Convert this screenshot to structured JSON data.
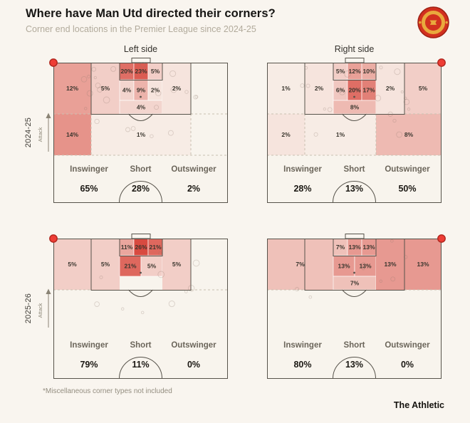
{
  "header": {
    "title": "Where have Man Utd directed their corners?",
    "subtitle": "Corner end locations in the Premier League since 2024-25"
  },
  "columns": {
    "left": "Left side",
    "right": "Right side"
  },
  "rows": {
    "top": "2024-25",
    "bottom": "2025-26"
  },
  "attack_label": "Attack",
  "delivery_types": [
    "Inswinger",
    "Short",
    "Outswinger"
  ],
  "footnote": "*Miscellaneous corner types not included",
  "brand": "The Athletic",
  "colors": {
    "background": "#f9f5ef",
    "pitch_fill": "#f8f4ed",
    "pitch_line": "#57534b",
    "dashed_line": "#c9c1b1",
    "heat_low": "#f9f5ee",
    "heat_high": "#d84a40",
    "corner_dot": "#ee3d35",
    "corner_dot_ring": "#b0261e",
    "crest_red": "#d2301f",
    "crest_gold": "#e9a93d"
  },
  "chart_data": {
    "type": "heatmap",
    "title": "Where have Man Utd directed their corners?",
    "subtitle": "Corner end locations in the Premier League since 2024-25",
    "value_format": "percent of corners ending in each pitch zone",
    "heat_scale_max_pct": 26,
    "pitches": [
      {
        "season": "2024-25",
        "side": "Left side",
        "corner_taken_from": "left",
        "zones": [
          {
            "region": "outer-left",
            "pct": 12
          },
          {
            "region": "pen-left",
            "pct": 5
          },
          {
            "region": "six-top-1",
            "pct": 20
          },
          {
            "region": "six-top-2",
            "pct": 23
          },
          {
            "region": "six-top-3",
            "pct": 5
          },
          {
            "region": "six-mid-1",
            "pct": 4
          },
          {
            "region": "six-mid-2",
            "pct": 9
          },
          {
            "region": "six-mid-3",
            "pct": 2
          },
          {
            "region": "six-low",
            "pct": 4
          },
          {
            "region": "pen-right",
            "pct": 2
          },
          {
            "region": "mid-left",
            "pct": 14
          },
          {
            "region": "mid-center",
            "pct": 1
          }
        ],
        "delivery_values": [
          "65%",
          "28%",
          "2%"
        ]
      },
      {
        "season": "2024-25",
        "side": "Right side",
        "corner_taken_from": "right",
        "zones": [
          {
            "region": "outer-left",
            "pct": 1
          },
          {
            "region": "pen-left",
            "pct": 2
          },
          {
            "region": "six-top-1",
            "pct": 5
          },
          {
            "region": "six-top-2",
            "pct": 12
          },
          {
            "region": "six-top-3",
            "pct": 10
          },
          {
            "region": "six-mid-1",
            "pct": 6
          },
          {
            "region": "six-mid-2",
            "pct": 20
          },
          {
            "region": "six-mid-3",
            "pct": 17
          },
          {
            "region": "six-low",
            "pct": 8
          },
          {
            "region": "pen-right",
            "pct": 2
          },
          {
            "region": "outer-right",
            "pct": 5
          },
          {
            "region": "mid-left",
            "pct": 2
          },
          {
            "region": "mid-center-narrow",
            "pct": 1
          },
          {
            "region": "mid-right-wide",
            "pct": 8
          }
        ],
        "delivery_values": [
          "28%",
          "13%",
          "50%"
        ]
      },
      {
        "season": "2025-26",
        "side": "Left side",
        "corner_taken_from": "left",
        "zones": [
          {
            "region": "outer-left",
            "pct": 5
          },
          {
            "region": "pen-left",
            "pct": 5
          },
          {
            "region": "six-top-1",
            "pct": 11
          },
          {
            "region": "six-top-2",
            "pct": 26
          },
          {
            "region": "six-top-3",
            "pct": 21
          },
          {
            "region": "six-mid-12",
            "pct": 21
          },
          {
            "region": "six-mid-3w",
            "pct": 5
          },
          {
            "region": "pen-right",
            "pct": 5
          }
        ],
        "delivery_values": [
          "79%",
          "11%",
          "0%"
        ]
      },
      {
        "season": "2025-26",
        "side": "Right side",
        "corner_taken_from": "right",
        "zones": [
          {
            "region": "left-wide",
            "pct": 7
          },
          {
            "region": "six-top-1",
            "pct": 7
          },
          {
            "region": "six-top-2",
            "pct": 13
          },
          {
            "region": "six-top-3",
            "pct": 13
          },
          {
            "region": "six-mid-12",
            "pct": 13
          },
          {
            "region": "six-mid-3w",
            "pct": 13
          },
          {
            "region": "six-low",
            "pct": 7
          },
          {
            "region": "pen-right",
            "pct": 13
          },
          {
            "region": "outer-right",
            "pct": 13
          }
        ],
        "delivery_values": [
          "80%",
          "13%",
          "0%"
        ]
      }
    ]
  }
}
